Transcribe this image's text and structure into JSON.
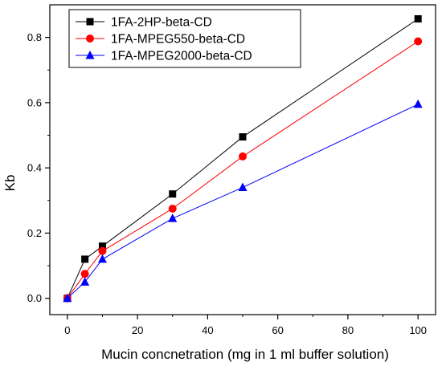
{
  "chart_data": {
    "type": "line",
    "xlabel": "Mucin concnetration (mg in 1 ml buffer solution)",
    "ylabel": "Kb",
    "xlim": [
      -5,
      105
    ],
    "ylim": [
      -0.05,
      0.9
    ],
    "x_ticks": [
      0,
      20,
      40,
      60,
      80,
      100
    ],
    "x_tick_labels": [
      "0",
      "20",
      "40",
      "60",
      "80",
      "100"
    ],
    "y_ticks": [
      0.0,
      0.2,
      0.4,
      0.6,
      0.8
    ],
    "y_tick_labels": [
      "0.0",
      "0.2",
      "0.4",
      "0.6",
      "0.8"
    ],
    "grid": false,
    "legend_position": "top-left",
    "x": [
      0,
      5,
      10,
      30,
      50,
      100
    ],
    "series": [
      {
        "name": "1FA-2HP-beta-CD",
        "color": "#000000",
        "marker": "square",
        "values": [
          0.0,
          0.12,
          0.16,
          0.32,
          0.495,
          0.857
        ]
      },
      {
        "name": "1FA-MPEG550-beta-CD",
        "color": "#ff0000",
        "marker": "circle",
        "values": [
          0.0,
          0.075,
          0.145,
          0.275,
          0.435,
          0.788
        ]
      },
      {
        "name": "1FA-MPEG2000-beta-CD",
        "color": "#0000ff",
        "marker": "triangle",
        "values": [
          0.0,
          0.05,
          0.12,
          0.245,
          0.34,
          0.595
        ]
      }
    ]
  }
}
